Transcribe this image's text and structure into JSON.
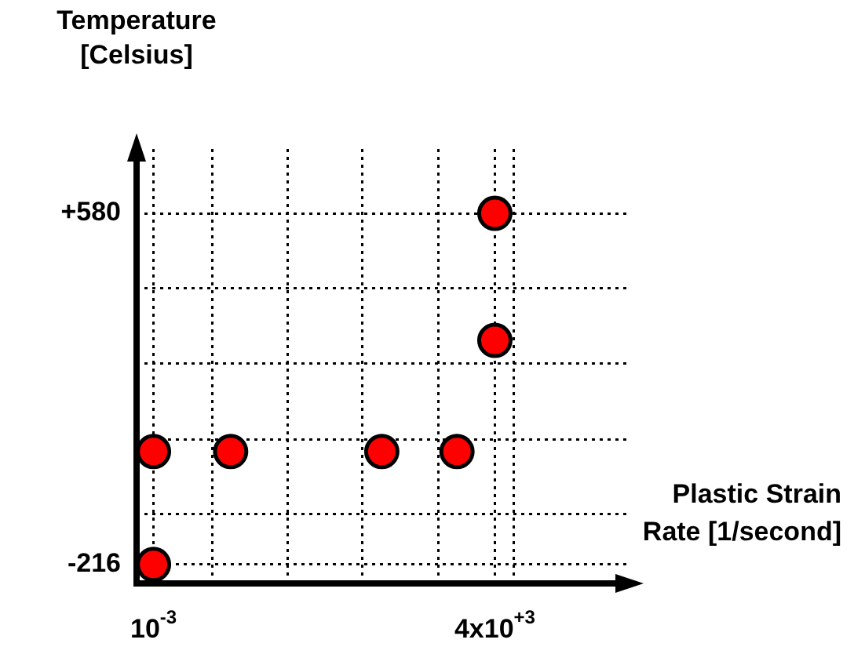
{
  "chart_data": {
    "type": "scatter",
    "xlabel": "Plastic Strain\nRate [1/second]",
    "ylabel": "Temperature\n[Celsius]",
    "x": [
      0.001,
      0.001,
      0.031,
      26,
      740,
      4000,
      4000
    ],
    "series": [
      {
        "color": "#ff0000",
        "values": [
          -216,
          40,
          40,
          40,
          40,
          292,
          580
        ]
      }
    ],
    "log": "x",
    "xlim": [
      0.00047,
      1500000
    ],
    "ylim": [
      -259,
      726
    ],
    "xticks": [
      {
        "value": 0.001,
        "label": "10$^{-3}$"
      },
      {
        "value": 0.0135,
        "label": null
      },
      {
        "value": 0.39,
        "label": null
      },
      {
        "value": 11,
        "label": null
      },
      {
        "value": 324,
        "label": null
      },
      {
        "value": 4000,
        "label": "4x10$^{+3}$"
      },
      {
        "value": 9300,
        "label": null
      }
    ],
    "yticks": [
      -216,
      {
        "value": -102,
        "label": null
      },
      {
        "value": 68,
        "label": null
      },
      {
        "value": 239,
        "label": null
      },
      {
        "value": 410,
        "label": null
      },
      {
        "value": 580,
        "label": "+580"
      }
    ],
    "grid": true,
    "marker": "circle",
    "legend": false
  }
}
